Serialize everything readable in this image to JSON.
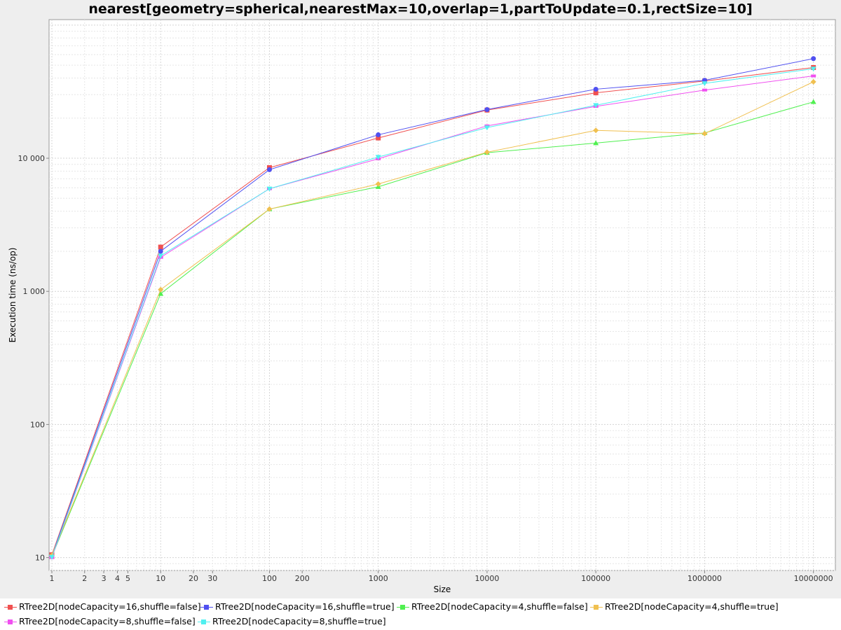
{
  "chart_data": {
    "type": "line",
    "title": "nearest[geometry=spherical,nearestMax=10,overlap=1,partToUpdate=0.1,rectSize=10]",
    "xlabel": "Size",
    "ylabel": "Execution time (ns/op)",
    "x_scale": "log",
    "y_scale": "log",
    "x": [
      1,
      10,
      100,
      1000,
      10000,
      100000,
      1000000,
      10000000
    ],
    "x_ticks": [
      1,
      2,
      3,
      4,
      5,
      10,
      20,
      30,
      100,
      200,
      1000,
      10000,
      100000,
      1000000,
      10000000
    ],
    "x_tick_labels": [
      "1",
      "2",
      "3",
      "4",
      "5",
      "10",
      "20",
      "30",
      "100",
      "200",
      "1000",
      "10000",
      "100000",
      "1000000",
      "10000000"
    ],
    "y_ticks": [
      10,
      100,
      1000,
      10000
    ],
    "y_tick_labels": [
      "10",
      "100",
      "1 000",
      "10 000"
    ],
    "xlim": [
      1,
      15000000
    ],
    "ylim": [
      8,
      110000
    ],
    "grid": true,
    "legend_position": "bottom",
    "series": [
      {
        "name": "RTree2D[nodeCapacity=16,shuffle=false]",
        "color": "#f05050",
        "marker": "square",
        "values": [
          10.5,
          2150,
          8500,
          14200,
          23000,
          31000,
          38000,
          48000
        ]
      },
      {
        "name": "RTree2D[nodeCapacity=16,shuffle=true]",
        "color": "#5050f0",
        "marker": "circle",
        "values": [
          10.3,
          2000,
          8200,
          15000,
          23200,
          33000,
          38500,
          56000
        ]
      },
      {
        "name": "RTree2D[nodeCapacity=4,shuffle=false]",
        "color": "#50f050",
        "marker": "triangle-up",
        "values": [
          10.2,
          960,
          4150,
          6100,
          11000,
          13000,
          15500,
          26500
        ]
      },
      {
        "name": "RTree2D[nodeCapacity=4,shuffle=true]",
        "color": "#f0c050",
        "marker": "diamond",
        "values": [
          10.4,
          1030,
          4150,
          6400,
          11100,
          16200,
          15300,
          37500
        ]
      },
      {
        "name": "RTree2D[nodeCapacity=8,shuffle=false]",
        "color": "#f050f0",
        "marker": "cross",
        "values": [
          10.0,
          1800,
          5900,
          9900,
          17500,
          24500,
          32500,
          41500
        ]
      },
      {
        "name": "RTree2D[nodeCapacity=8,shuffle=true]",
        "color": "#50f0f0",
        "marker": "triangle-down",
        "values": [
          10.1,
          1850,
          5900,
          10200,
          17000,
          25000,
          36500,
          47000
        ]
      }
    ]
  }
}
